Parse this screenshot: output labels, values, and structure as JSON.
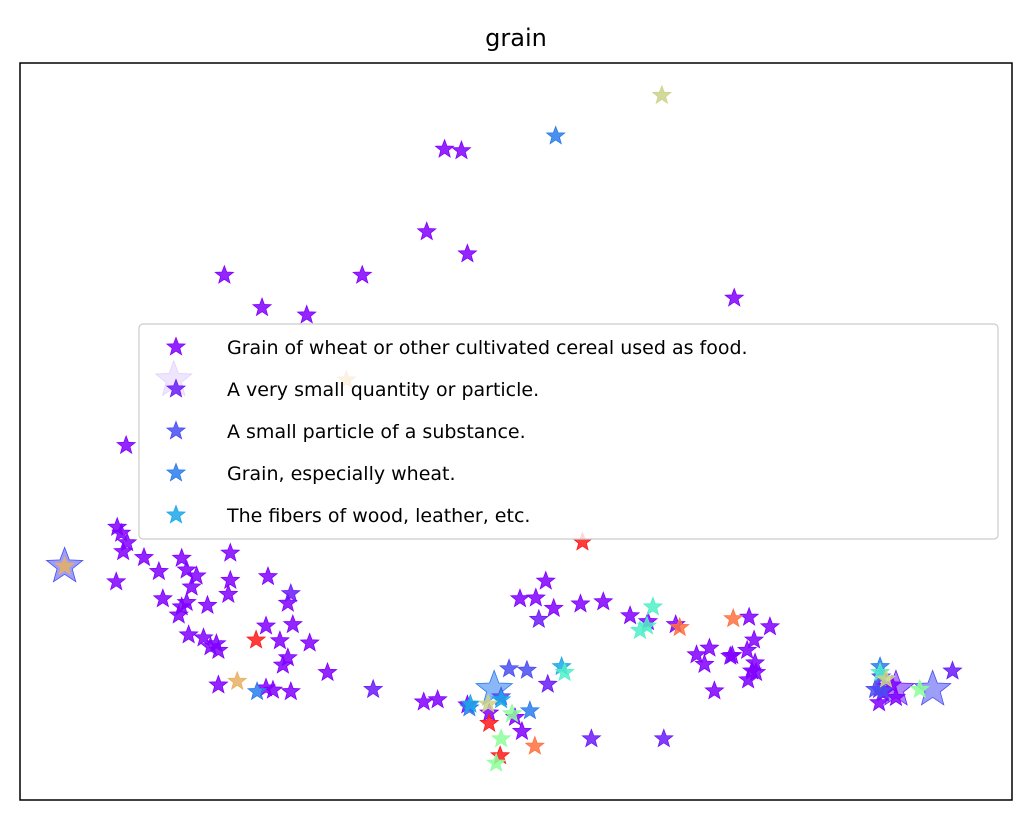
{
  "chart_data": {
    "type": "scatter",
    "title": "grain",
    "xlabel": "",
    "ylabel": "",
    "xlim": [
      0,
      100
    ],
    "ylim": [
      0,
      100
    ],
    "axis_ticks": false,
    "grid": false,
    "legend_placement": "upper-center",
    "series": [
      {
        "name": "Grain of wheat or other cultivated cereal used as food.",
        "color": "#8000ff",
        "points": [
          [
            42.8,
            88.3
          ],
          [
            44.5,
            88.1
          ],
          [
            41.0,
            77.1
          ],
          [
            45.1,
            74.1
          ],
          [
            34.5,
            71.2
          ],
          [
            20.6,
            71.2
          ],
          [
            72.0,
            68.1
          ],
          [
            24.4,
            66.8
          ],
          [
            28.9,
            65.8
          ],
          [
            10.7,
            48.1
          ],
          [
            9.8,
            37.0
          ],
          [
            10.2,
            36.2
          ],
          [
            10.8,
            34.9
          ],
          [
            10.4,
            33.7
          ],
          [
            12.5,
            32.9
          ],
          [
            16.3,
            32.8
          ],
          [
            16.8,
            31.2
          ],
          [
            14.0,
            31.0
          ],
          [
            21.2,
            33.5
          ],
          [
            17.8,
            30.4
          ],
          [
            25.0,
            30.3
          ],
          [
            9.7,
            29.6
          ],
          [
            17.3,
            28.9
          ],
          [
            21.2,
            29.8
          ],
          [
            14.4,
            27.3
          ],
          [
            16.8,
            26.8
          ],
          [
            21.0,
            27.9
          ],
          [
            18.9,
            26.4
          ],
          [
            16.3,
            26.2
          ],
          [
            27.0,
            26.7
          ],
          [
            16.0,
            25.1
          ],
          [
            24.8,
            23.6
          ],
          [
            26.2,
            21.6
          ],
          [
            27.5,
            23.8
          ],
          [
            29.2,
            21.3
          ],
          [
            18.5,
            22.0
          ],
          [
            19.8,
            21.2
          ],
          [
            17.0,
            22.4
          ],
          [
            26.5,
            18.3
          ],
          [
            27.0,
            19.3
          ],
          [
            19.2,
            20.8
          ],
          [
            20.0,
            20.3
          ],
          [
            20.0,
            15.6
          ],
          [
            24.8,
            15.2
          ],
          [
            25.5,
            14.9
          ],
          [
            27.3,
            14.7
          ],
          [
            31.0,
            17.3
          ],
          [
            40.7,
            13.3
          ],
          [
            50.4,
            27.3
          ],
          [
            52.0,
            27.4
          ],
          [
            53.8,
            26.0
          ],
          [
            53.0,
            29.7
          ],
          [
            56.5,
            26.6
          ],
          [
            58.8,
            26.9
          ],
          [
            61.5,
            25.0
          ],
          [
            63.3,
            24.2
          ],
          [
            66.1,
            23.8
          ],
          [
            73.5,
            24.8
          ],
          [
            75.6,
            23.5
          ],
          [
            74.0,
            21.7
          ],
          [
            71.6,
            19.5
          ],
          [
            73.3,
            20.3
          ],
          [
            74.1,
            18.6
          ],
          [
            73.8,
            17.5
          ],
          [
            73.4,
            16.3
          ],
          [
            74.2,
            17.3
          ],
          [
            69.5,
            20.6
          ],
          [
            69.0,
            18.4
          ],
          [
            68.2,
            19.7
          ],
          [
            71.8,
            19.6
          ],
          [
            70.0,
            14.8
          ],
          [
            87.9,
            15.6
          ],
          [
            87.0,
            14.5
          ],
          [
            88.3,
            13.9
          ],
          [
            86.6,
            13.2
          ],
          [
            42.1,
            13.6
          ],
          [
            45.1,
            12.9
          ],
          [
            47.3,
            11.8
          ],
          [
            49.9,
            11.2
          ],
          [
            50.6,
            9.3
          ]
        ]
      },
      {
        "name": "A very small quantity or particle.",
        "color": "#6a1af8",
        "points": [
          [
            27.3,
            28.0
          ],
          [
            35.6,
            15.0
          ],
          [
            52.3,
            24.5
          ],
          [
            94.0,
            17.5
          ],
          [
            86.6,
            15.0
          ],
          [
            53.2,
            15.7
          ],
          [
            57.6,
            8.3
          ],
          [
            64.9,
            8.3
          ]
        ]
      },
      {
        "name": "A small particle of a substance.",
        "color": "#4a4ef0",
        "points": [
          [
            51.1,
            17.6
          ],
          [
            48.5,
            14.0
          ],
          [
            86.8,
            16.7
          ],
          [
            86.2,
            15.0
          ],
          [
            87.0,
            14.8
          ],
          [
            49.3,
            17.8
          ]
        ]
      },
      {
        "name": "Grain, especially wheat.",
        "color": "#2a7cec",
        "points": [
          [
            23.9,
            14.7
          ],
          [
            45.3,
            12.5
          ],
          [
            51.4,
            12.1
          ],
          [
            86.7,
            18.1
          ],
          [
            54.0,
            90.1
          ]
        ]
      },
      {
        "name": "The fibers of wood, leather, etc.",
        "color": "#1ba7e8",
        "points": [
          [
            48.5,
            13.6
          ],
          [
            45.4,
            13.0
          ],
          [
            54.6,
            18.1
          ]
        ]
      },
      {
        "name": "",
        "color": "#ff1a1a",
        "points": [
          [
            23.8,
            21.7
          ],
          [
            48.4,
            6.0
          ],
          [
            47.3,
            10.4
          ],
          [
            56.7,
            35.0
          ]
        ]
      },
      {
        "name": "",
        "color": "#ff7040",
        "points": [
          [
            71.9,
            24.6
          ],
          [
            66.5,
            23.4
          ],
          [
            51.9,
            7.3
          ]
        ]
      },
      {
        "name": "",
        "color": "#e8b060",
        "points": [
          [
            21.9,
            16.1
          ],
          [
            4.5,
            31.7
          ],
          [
            32.9,
            57.0
          ]
        ]
      },
      {
        "name": "",
        "color": "#50f0c8",
        "points": [
          [
            63.8,
            26.2
          ],
          [
            62.5,
            23.0
          ],
          [
            63.2,
            23.6
          ],
          [
            54.9,
            17.3
          ],
          [
            86.7,
            17.3
          ]
        ]
      },
      {
        "name": "",
        "color": "#8cff9a",
        "points": [
          [
            49.6,
            11.7
          ],
          [
            48.5,
            8.3
          ],
          [
            48.0,
            5.0
          ],
          [
            90.7,
            15.0
          ]
        ]
      },
      {
        "name": "",
        "color": "#cdd28a",
        "points": [
          [
            47.2,
            13.0
          ],
          [
            87.3,
            16.4
          ],
          [
            64.7,
            95.6
          ]
        ]
      }
    ],
    "large_markers": [
      {
        "x": 4.5,
        "y": 31.7,
        "color": "#4a4ef0"
      },
      {
        "x": 47.8,
        "y": 15.0,
        "color": "#2a7cec"
      },
      {
        "x": 88.3,
        "y": 15.0,
        "color": "#6a1af8"
      },
      {
        "x": 92.0,
        "y": 15.0,
        "color": "#4a4ef0"
      },
      {
        "x": 15.5,
        "y": 57.0,
        "color": "#6a1af8"
      }
    ]
  }
}
